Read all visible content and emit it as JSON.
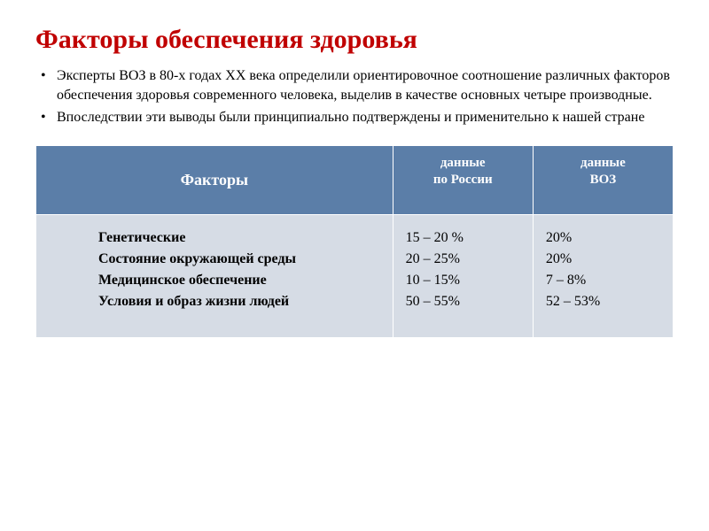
{
  "title": "Факторы  обеспечения здоровья",
  "bullets": [
    "Эксперты ВОЗ в 80-х годах XX века определили ориентировочное соотношение различных факторов обеспечения здоровья современного человека, выделив в качестве основных четыре производные.",
    " Впоследствии эти выводы были принципиально подтверждены и применительно к нашей стране"
  ],
  "table": {
    "headers": {
      "factors": "Факторы",
      "russia_line1": "данные",
      "russia_line2": "по России",
      "who_line1": "данные",
      "who_line2": "ВОЗ"
    },
    "factor_rows": [
      "Генетические",
      "Состояние окружающей среды",
      "Медицинское обеспечение",
      "Условия и образ жизни людей"
    ],
    "russia_values": [
      "15 – 20 %",
      "20 – 25%",
      "10 – 15%",
      "50 – 55%"
    ],
    "who_values": [
      "20%",
      "20%",
      "7 – 8%",
      "52 – 53%"
    ],
    "header_bg": "#5b7ea8",
    "header_text_color": "#ffffff",
    "cell_bg": "#d6dce5",
    "cell_text_color": "#000000",
    "title_color": "#c00000"
  }
}
